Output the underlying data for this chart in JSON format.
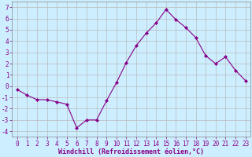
{
  "x": [
    0,
    1,
    2,
    3,
    4,
    5,
    6,
    7,
    8,
    9,
    10,
    11,
    12,
    13,
    14,
    15,
    16,
    17,
    18,
    19,
    20,
    21,
    22,
    23
  ],
  "y": [
    -0.3,
    -0.8,
    -1.2,
    -1.2,
    -1.4,
    -1.6,
    -3.7,
    -3.0,
    -3.0,
    -1.3,
    0.3,
    2.1,
    3.6,
    4.7,
    5.6,
    6.8,
    5.9,
    5.2,
    4.3,
    2.7,
    2.0,
    2.6,
    1.4,
    0.5
  ],
  "line_color": "#880088",
  "marker": "D",
  "marker_size": 2,
  "bg_color": "#cceeff",
  "grid_color": "#bbbbbb",
  "xlabel": "Windchill (Refroidissement éolien,°C)",
  "ylabel_ticks": [
    -4,
    -3,
    -2,
    -1,
    0,
    1,
    2,
    3,
    4,
    5,
    6,
    7
  ],
  "xlim": [
    -0.5,
    23.5
  ],
  "ylim": [
    -4.5,
    7.5
  ],
  "xtick_labels": [
    "0",
    "1",
    "2",
    "3",
    "4",
    "5",
    "6",
    "7",
    "8",
    "9",
    "10",
    "11",
    "12",
    "13",
    "14",
    "15",
    "16",
    "17",
    "18",
    "19",
    "20",
    "21",
    "22",
    "23"
  ],
  "tick_fontsize": 5.5,
  "xlabel_fontsize": 6.0,
  "tick_color": "#880088",
  "xlabel_color": "#880088",
  "spine_color": "#888888"
}
